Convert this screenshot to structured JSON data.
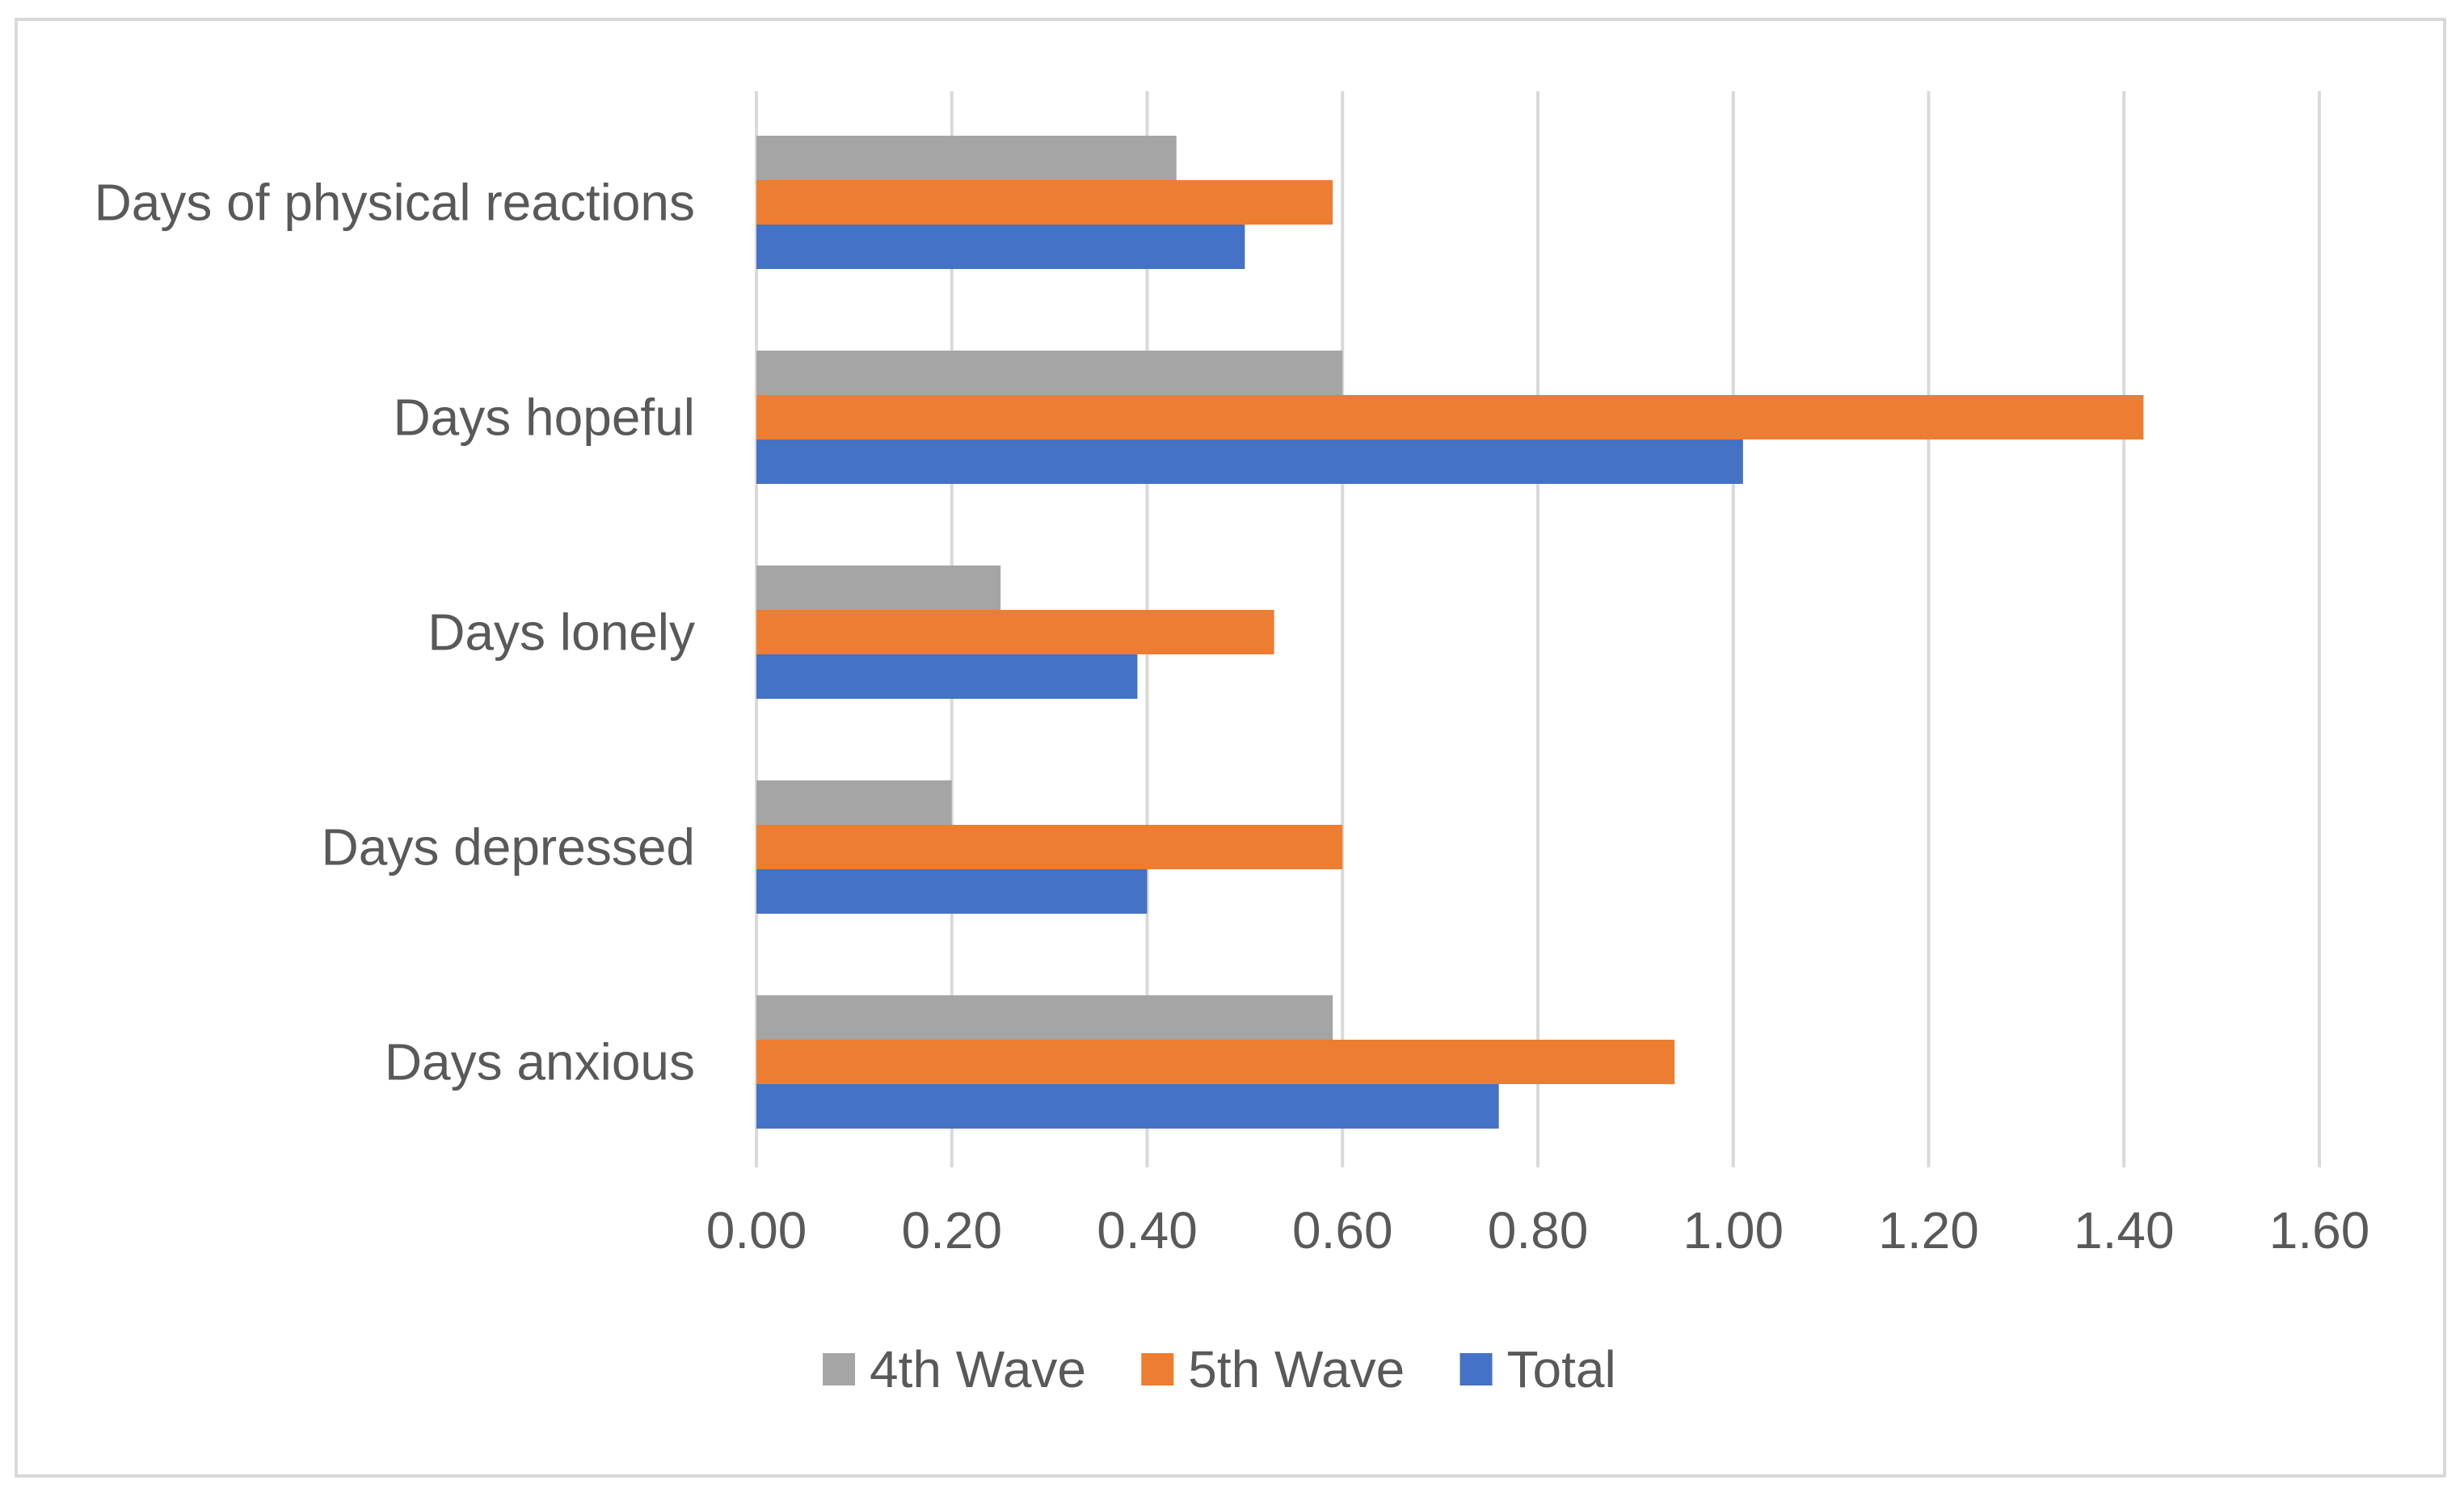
{
  "colors": {
    "background": "#ffffff",
    "frame": "#d9d9d9",
    "gridline": "#d9d9d9",
    "text": "#595959",
    "series": [
      "#a5a5a5",
      "#ed7d31",
      "#4472c4"
    ]
  },
  "chart_data": {
    "type": "bar",
    "orientation": "horizontal",
    "title": "",
    "xlabel": "",
    "ylabel": "",
    "xlim": [
      0,
      1.6
    ],
    "x_ticks": [
      0,
      0.2,
      0.4,
      0.6,
      0.8,
      1.0,
      1.2,
      1.4,
      1.6
    ],
    "x_tick_labels": [
      "0.00",
      "0.20",
      "0.40",
      "0.60",
      "0.80",
      "1.00",
      "1.20",
      "1.40",
      "1.60"
    ],
    "grid": true,
    "legend_position": "bottom",
    "categories": [
      "Days of physical reactions",
      "Days hopeful",
      "Days lonely",
      "Days depressed",
      "Days anxious"
    ],
    "series": [
      {
        "name": "4th Wave",
        "values": [
          0.43,
          0.6,
          0.25,
          0.2,
          0.59
        ]
      },
      {
        "name": "5th Wave",
        "values": [
          0.59,
          1.42,
          0.53,
          0.6,
          0.94
        ]
      },
      {
        "name": "Total",
        "values": [
          0.5,
          1.01,
          0.39,
          0.4,
          0.76
        ]
      }
    ]
  }
}
